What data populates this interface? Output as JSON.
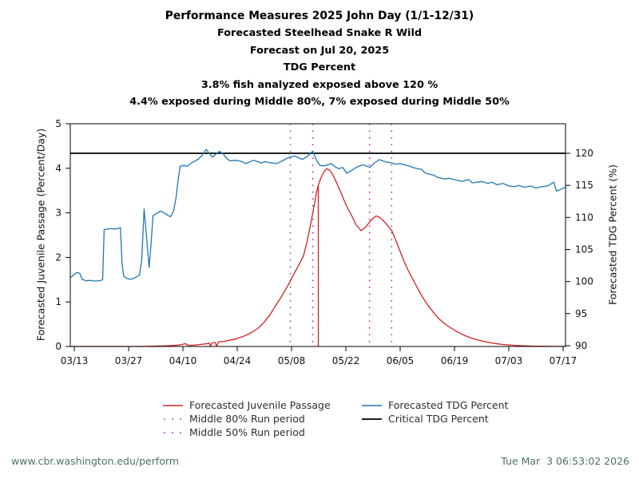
{
  "titles": {
    "line1": "Performance Measures 2025 John Day (1/1-12/31)",
    "line2": "Forecasted Steelhead Snake R Wild",
    "line3": "Forecast on Jul 20, 2025",
    "line4": "TDG Percent",
    "line5": "3.8% fish analyzed exposed above 120 %",
    "line6": "4.4% exposed during Middle 80%, 7% exposed during Middle 50%"
  },
  "axes": {
    "left_label": "Forecasted Juvenile Passage (Percent/Day)",
    "right_label": "Forecasted TDG Percent (%)"
  },
  "legend": [
    {
      "label": "Forecasted Juvenile Passage",
      "color": "#d62020",
      "style": "solid"
    },
    {
      "label": "Middle 80% Run period",
      "color": "#5a5a5a",
      "style": "dotted"
    },
    {
      "label": "Middle 50% Run period",
      "color": "#c400c4",
      "style": "dotted"
    },
    {
      "label": "Forecasted TDG Percent",
      "color": "#1f77b4",
      "style": "solid"
    },
    {
      "label": "Critical TDG Percent",
      "color": "#000000",
      "style": "solid"
    }
  ],
  "footer": {
    "left": "www.cbr.washington.edu/perform",
    "right": "Tue Mar  3 06:53:02 2026"
  },
  "chart_data": {
    "type": "line",
    "title": "Performance Measures 2025 John Day (1/1-12/31)",
    "x_unit": "days since 03/12",
    "x_axis": {
      "tick_labels": [
        "03/13",
        "03/27",
        "04/10",
        "04/24",
        "05/08",
        "05/22",
        "06/05",
        "06/19",
        "07/03",
        "07/17"
      ],
      "tick_days": [
        1,
        15,
        29,
        43,
        57,
        71,
        85,
        99,
        113,
        127
      ]
    },
    "y_left": {
      "label": "Forecasted Juvenile Passage (Percent/Day)",
      "ticks": [
        0,
        1,
        2,
        3,
        4,
        5
      ],
      "range": [
        0,
        5
      ]
    },
    "y_right": {
      "label": "Forecasted TDG Percent (%)",
      "ticks": [
        90,
        95,
        100,
        105,
        110,
        115,
        120
      ],
      "range": [
        90,
        125
      ]
    },
    "critical_tdg": 120,
    "middle80_days": [
      56.7,
      82.8
    ],
    "middle50_days": [
      62.5,
      77.1
    ],
    "median_marker": {
      "day": 63.9,
      "value": 3.62
    },
    "series": [
      {
        "name": "Forecasted TDG Percent",
        "axis": "right",
        "color": "#1f77b4",
        "points": [
          [
            0,
            100.6
          ],
          [
            0.8,
            101.0
          ],
          [
            1.6,
            101.4
          ],
          [
            2.4,
            101.3
          ],
          [
            3.0,
            100.4
          ],
          [
            4,
            100.1
          ],
          [
            5,
            100.2
          ],
          [
            6,
            100.1
          ],
          [
            7,
            100.1
          ],
          [
            8,
            100.2
          ],
          [
            8.3,
            100.3
          ],
          [
            8.7,
            108.1
          ],
          [
            9.5,
            108.2
          ],
          [
            10.5,
            108.25
          ],
          [
            11.5,
            108.2
          ],
          [
            12.4,
            108.3
          ],
          [
            12.9,
            108.4
          ],
          [
            13.3,
            103.0
          ],
          [
            13.7,
            100.9
          ],
          [
            14.5,
            100.5
          ],
          [
            15.5,
            100.35
          ],
          [
            16.3,
            100.5
          ],
          [
            17.0,
            100.7
          ],
          [
            17.8,
            101.0
          ],
          [
            18.4,
            103.5
          ],
          [
            19.0,
            111.3
          ],
          [
            19.7,
            106.5
          ],
          [
            20.3,
            102.2
          ],
          [
            20.8,
            106.0
          ],
          [
            21.3,
            110.3
          ],
          [
            22.2,
            110.6
          ],
          [
            23.2,
            111.0
          ],
          [
            24.2,
            110.7
          ],
          [
            25.2,
            110.3
          ],
          [
            25.8,
            110.1
          ],
          [
            26.6,
            111.0
          ],
          [
            27.2,
            113.0
          ],
          [
            27.8,
            116.0
          ],
          [
            28.3,
            118.0
          ],
          [
            29.2,
            118.1
          ],
          [
            30.2,
            118.0
          ],
          [
            31.2,
            118.5
          ],
          [
            32.2,
            118.8
          ],
          [
            33.2,
            119.2
          ],
          [
            34.2,
            119.9
          ],
          [
            35.0,
            120.6
          ],
          [
            35.8,
            120.0
          ],
          [
            36.6,
            119.4
          ],
          [
            37.6,
            119.9
          ],
          [
            38.4,
            120.3
          ],
          [
            39.4,
            119.9
          ],
          [
            40.4,
            119.1
          ],
          [
            41.2,
            118.8
          ],
          [
            42.2,
            118.9
          ],
          [
            43.2,
            118.85
          ],
          [
            44.2,
            118.7
          ],
          [
            45.2,
            118.4
          ],
          [
            46.2,
            118.65
          ],
          [
            47.2,
            118.9
          ],
          [
            48.2,
            118.7
          ],
          [
            49.2,
            118.5
          ],
          [
            50.2,
            118.7
          ],
          [
            51.2,
            118.55
          ],
          [
            52.2,
            118.5
          ],
          [
            53.2,
            118.4
          ],
          [
            54.2,
            118.7
          ],
          [
            55.2,
            119.0
          ],
          [
            56.2,
            119.3
          ],
          [
            57.0,
            119.45
          ],
          [
            57.8,
            119.6
          ],
          [
            58.8,
            119.3
          ],
          [
            59.8,
            119.05
          ],
          [
            60.8,
            119.4
          ],
          [
            61.6,
            119.8
          ],
          [
            62.4,
            120.3
          ],
          [
            62.9,
            119.7
          ],
          [
            63.6,
            118.7
          ],
          [
            64.4,
            118.1
          ],
          [
            65.4,
            118.05
          ],
          [
            66.4,
            118.2
          ],
          [
            67.2,
            118.4
          ],
          [
            68.2,
            117.9
          ],
          [
            69.2,
            117.6
          ],
          [
            70.2,
            117.8
          ],
          [
            71.2,
            116.9
          ],
          [
            72.2,
            117.2
          ],
          [
            73.4,
            117.7
          ],
          [
            74.4,
            118.0
          ],
          [
            75.4,
            118.2
          ],
          [
            76.4,
            118.0
          ],
          [
            77.2,
            117.8
          ],
          [
            78.2,
            118.4
          ],
          [
            79.6,
            119.0
          ],
          [
            80.6,
            118.8
          ],
          [
            81.6,
            118.6
          ],
          [
            82.8,
            118.5
          ],
          [
            84.0,
            118.3
          ],
          [
            85.0,
            118.4
          ],
          [
            86.4,
            118.15
          ],
          [
            87.5,
            118.0
          ],
          [
            88.5,
            117.75
          ],
          [
            89.5,
            117.6
          ],
          [
            90.5,
            117.5
          ],
          [
            91.5,
            116.9
          ],
          [
            92.5,
            116.75
          ],
          [
            93.6,
            116.6
          ],
          [
            94.6,
            116.25
          ],
          [
            95.6,
            116.1
          ],
          [
            96.6,
            116.0
          ],
          [
            97.6,
            116.1
          ],
          [
            98.6,
            115.95
          ],
          [
            99.6,
            115.8
          ],
          [
            101.0,
            115.6
          ],
          [
            102.6,
            115.9
          ],
          [
            103.6,
            115.4
          ],
          [
            105.0,
            115.5
          ],
          [
            106.0,
            115.6
          ],
          [
            107.6,
            115.3
          ],
          [
            108.6,
            115.5
          ],
          [
            110.0,
            115.1
          ],
          [
            111.6,
            115.3
          ],
          [
            113.0,
            114.9
          ],
          [
            114.6,
            114.8
          ],
          [
            115.6,
            115.0
          ],
          [
            117.0,
            114.7
          ],
          [
            118.6,
            114.9
          ],
          [
            120.0,
            114.6
          ],
          [
            121.6,
            114.8
          ],
          [
            123.0,
            114.9
          ],
          [
            124.6,
            115.5
          ],
          [
            125.3,
            114.1
          ],
          [
            126.3,
            114.35
          ],
          [
            127.5,
            114.7
          ]
        ]
      },
      {
        "name": "Forecasted Juvenile Passage",
        "axis": "left",
        "color": "#d62020",
        "points": [
          [
            0,
            0
          ],
          [
            18,
            0
          ],
          [
            21,
            0.005
          ],
          [
            24,
            0.012
          ],
          [
            26,
            0.02
          ],
          [
            28,
            0.032
          ],
          [
            29,
            0.05
          ],
          [
            29.6,
            0.065
          ],
          [
            30.2,
            0.03
          ],
          [
            31,
            0.025
          ],
          [
            32,
            0.03
          ],
          [
            33.5,
            0.045
          ],
          [
            35,
            0.06
          ],
          [
            35.8,
            0.075
          ],
          [
            36.1,
            0.005
          ],
          [
            36.5,
            0.08
          ],
          [
            37.3,
            0.09
          ],
          [
            37.7,
            0.005
          ],
          [
            38.1,
            0.1
          ],
          [
            39.5,
            0.115
          ],
          [
            41,
            0.14
          ],
          [
            42.5,
            0.165
          ],
          [
            44,
            0.21
          ],
          [
            45.5,
            0.26
          ],
          [
            47,
            0.33
          ],
          [
            48.5,
            0.42
          ],
          [
            50,
            0.55
          ],
          [
            51.5,
            0.72
          ],
          [
            53,
            0.93
          ],
          [
            54.5,
            1.13
          ],
          [
            55.8,
            1.33
          ],
          [
            56.7,
            1.47
          ],
          [
            57.8,
            1.66
          ],
          [
            59,
            1.85
          ],
          [
            60.1,
            2.04
          ],
          [
            61,
            2.35
          ],
          [
            62,
            2.78
          ],
          [
            62.8,
            3.15
          ],
          [
            63.4,
            3.45
          ],
          [
            63.9,
            3.62
          ],
          [
            64.6,
            3.79
          ],
          [
            65.3,
            3.91
          ],
          [
            66,
            3.99
          ],
          [
            66.8,
            3.96
          ],
          [
            67.6,
            3.86
          ],
          [
            68.6,
            3.68
          ],
          [
            69.6,
            3.48
          ],
          [
            70.6,
            3.27
          ],
          [
            71.6,
            3.08
          ],
          [
            72.6,
            2.92
          ],
          [
            73.6,
            2.74
          ],
          [
            74.9,
            2.6
          ],
          [
            76,
            2.67
          ],
          [
            77.1,
            2.79
          ],
          [
            78,
            2.88
          ],
          [
            78.8,
            2.93
          ],
          [
            79.7,
            2.9
          ],
          [
            80.7,
            2.82
          ],
          [
            81.7,
            2.72
          ],
          [
            82.8,
            2.61
          ],
          [
            83.8,
            2.4
          ],
          [
            84.8,
            2.18
          ],
          [
            85.9,
            1.93
          ],
          [
            87,
            1.72
          ],
          [
            88.2,
            1.52
          ],
          [
            89.4,
            1.32
          ],
          [
            90.8,
            1.1
          ],
          [
            92.2,
            0.92
          ],
          [
            93.6,
            0.76
          ],
          [
            95,
            0.62
          ],
          [
            96.5,
            0.51
          ],
          [
            98,
            0.42
          ],
          [
            99.5,
            0.34
          ],
          [
            101,
            0.27
          ],
          [
            102.5,
            0.215
          ],
          [
            104,
            0.17
          ],
          [
            105.5,
            0.135
          ],
          [
            107,
            0.105
          ],
          [
            108.5,
            0.08
          ],
          [
            110,
            0.06
          ],
          [
            111.5,
            0.045
          ],
          [
            113,
            0.034
          ],
          [
            114.5,
            0.025
          ],
          [
            116,
            0.018
          ],
          [
            117.5,
            0.012
          ],
          [
            119,
            0.008
          ],
          [
            121,
            0.005
          ],
          [
            123,
            0.003
          ],
          [
            125,
            0.002
          ],
          [
            127.5,
            0.001
          ]
        ]
      }
    ]
  }
}
